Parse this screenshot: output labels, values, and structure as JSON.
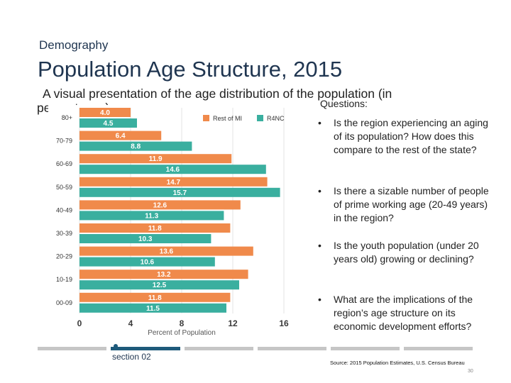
{
  "slide": {
    "eyebrow": "Demography",
    "title": "Population Age Structure, 2015",
    "subtitle_line1": "A visual presentation of the age distribution of the population (in",
    "subtitle_line2": "percentages)",
    "section_label": "section 02",
    "source": "Source: 2015 Population Estimates, U.S. Census Bureau",
    "page_number": "30"
  },
  "questions": {
    "heading": "Questions:",
    "items": [
      "Is the region experiencing an aging of its population? How does this compare to the rest of the state?",
      "Is there a sizable number of people of prime working age (20-49 years) in the region?",
      "Is the youth population (under 20 years old) growing or declining?",
      "What are the implications of the region’s age structure on its economic development efforts?"
    ]
  },
  "chart_data": {
    "type": "bar",
    "orientation": "horizontal",
    "title": "",
    "xlabel": "Percent of Population",
    "ylabel": "",
    "categories": [
      "80+",
      "70-79",
      "60-69",
      "50-59",
      "40-49",
      "30-39",
      "20-29",
      "10-19",
      "00-09"
    ],
    "series": [
      {
        "name": "Rest of MI",
        "color": "#f08a4b",
        "values": [
          4.0,
          6.4,
          11.9,
          14.7,
          12.6,
          11.8,
          13.6,
          13.2,
          11.8
        ]
      },
      {
        "name": "R4NC",
        "color": "#3aaf9f",
        "values": [
          4.5,
          8.8,
          14.6,
          15.7,
          11.3,
          10.3,
          10.6,
          12.5,
          11.5
        ]
      }
    ],
    "xlim": [
      0,
      16
    ],
    "xticks": [
      0,
      4,
      8,
      12,
      16
    ],
    "grid": true,
    "legend": "top-right"
  },
  "colors": {
    "accent_dark": "#1e5a7b",
    "title_color": "#1f3550",
    "progress_gray": "#c6c6c6"
  }
}
